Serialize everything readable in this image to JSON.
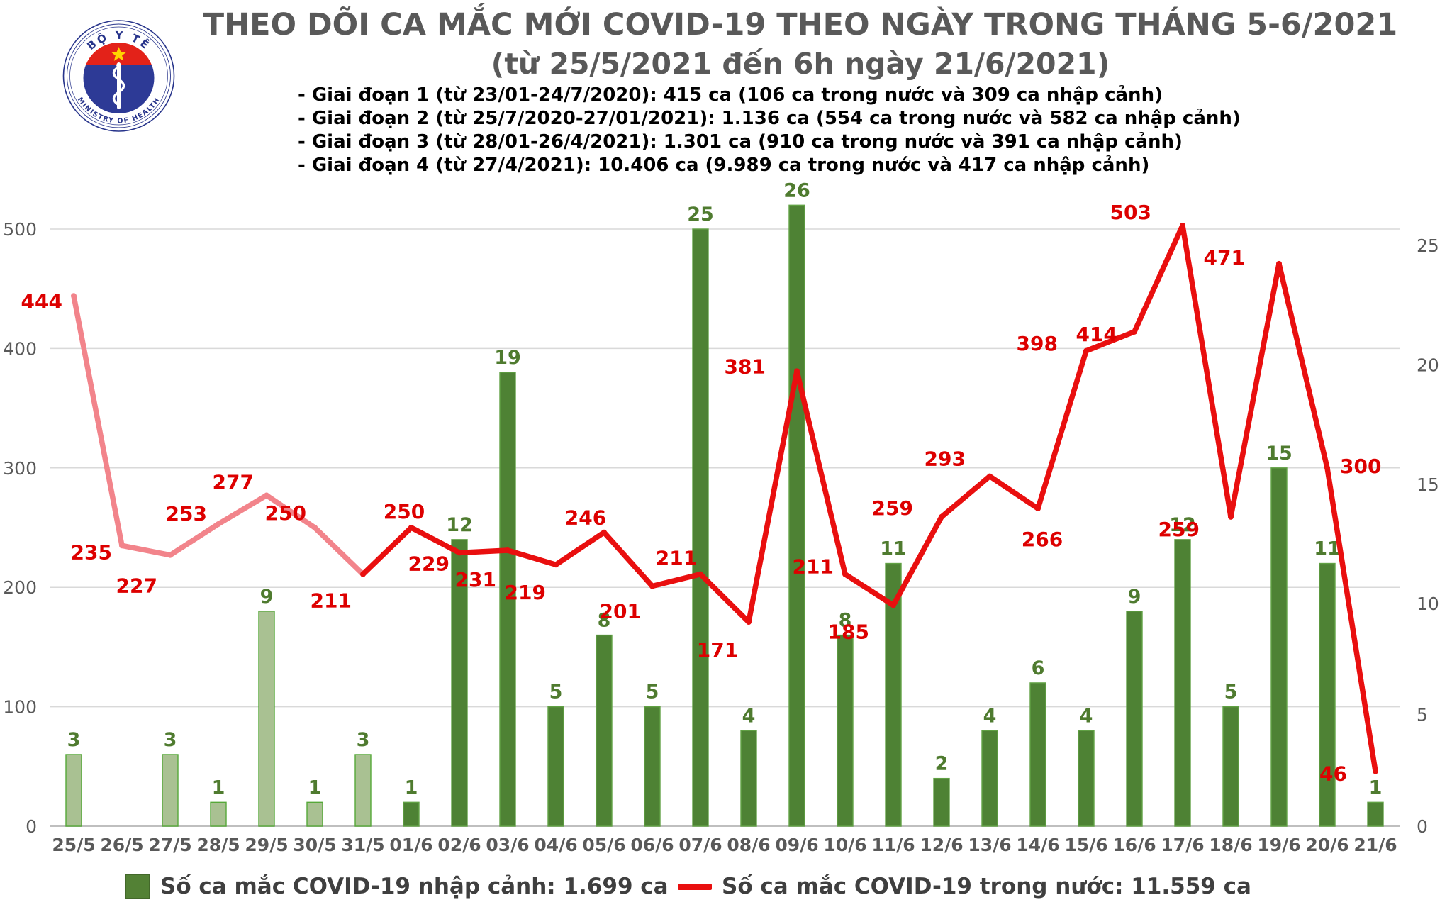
{
  "header": {
    "title_line1": "THEO DÕI CA MẮC MỚI COVID-19 THEO NGÀY TRONG THÁNG 5-6/2021",
    "title_line2": "(từ 25/5/2021 đến 6h ngày 21/6/2021)",
    "logo": {
      "top_text": "BỘ Y TẾ",
      "bottom_text": "MINISTRY OF HEALTH"
    },
    "phases": [
      "- Giai đoạn 1 (từ 23/01-24/7/2020): 415 ca (106 ca trong nước và 309 ca nhập cảnh)",
      "- Giai đoạn 2 (từ 25/7/2020-27/01/2021): 1.136 ca (554 ca trong nước và 582 ca nhập cảnh)",
      "- Giai đoạn 3 (từ 28/01-26/4/2021): 1.301 ca (910 ca trong nước và 391 ca nhập cảnh)",
      "- Giai đoạn 4 (từ 27/4/2021): 10.406 ca (9.989 ca trong nước và 417 ca nhập cảnh)"
    ]
  },
  "chart_data": {
    "type": "combo bar+line",
    "categories": [
      "25/5",
      "26/5",
      "27/5",
      "28/5",
      "29/5",
      "30/5",
      "31/5",
      "01/6",
      "02/6",
      "03/6",
      "04/6",
      "05/6",
      "06/6",
      "07/6",
      "08/6",
      "09/6",
      "10/6",
      "11/6",
      "12/6",
      "13/6",
      "14/6",
      "15/6",
      "16/6",
      "17/6",
      "18/6",
      "19/6",
      "20/6",
      "21/6"
    ],
    "series": [
      {
        "name": "Số ca mắc COVID-19 nhập cảnh",
        "type": "bar",
        "axis": "right",
        "values": [
          3,
          0,
          3,
          1,
          9,
          1,
          3,
          1,
          12,
          19,
          5,
          8,
          5,
          25,
          4,
          26,
          8,
          11,
          2,
          4,
          6,
          4,
          9,
          12,
          5,
          15,
          11,
          1
        ],
        "faded_until_index": 6
      },
      {
        "name": "Số ca mắc COVID-19 trong nước",
        "type": "line",
        "axis": "left",
        "values": [
          444,
          235,
          227,
          253,
          277,
          250,
          211,
          250,
          229,
          231,
          219,
          246,
          201,
          211,
          171,
          381,
          211,
          185,
          259,
          293,
          266,
          398,
          414,
          503,
          259,
          471,
          300,
          46
        ],
        "faded_until_index": 6
      }
    ],
    "left_axis": {
      "ticks": [
        0,
        100,
        200,
        300,
        400,
        500
      ],
      "max": 500
    },
    "right_axis": {
      "ticks": [
        0,
        5,
        10,
        15,
        20,
        25
      ],
      "max": 25
    },
    "grid": true,
    "legend_position": "bottom"
  },
  "legend": {
    "bar_label": "Số ca mắc COVID-19 nhập cảnh: 1.699 ca",
    "line_label": "Số ca mắc COVID-19 trong nước: 11.559 ca"
  },
  "colors": {
    "bar_dark": "#4e8234",
    "bar_dark_stroke": "#61a144",
    "bar_light": "#a9c192",
    "bar_light_stroke": "#56a839",
    "line_red": "#e90f0f",
    "line_pink": "#f2848b",
    "bar_label": "#4f7b2f",
    "line_label": "#dd0000",
    "axis_text": "#595959",
    "gridline": "#d9d9d9",
    "title_text": "#595959",
    "logo_blue": "#27348b",
    "logo_red": "#e32219",
    "logo_star": "#ffd400"
  }
}
